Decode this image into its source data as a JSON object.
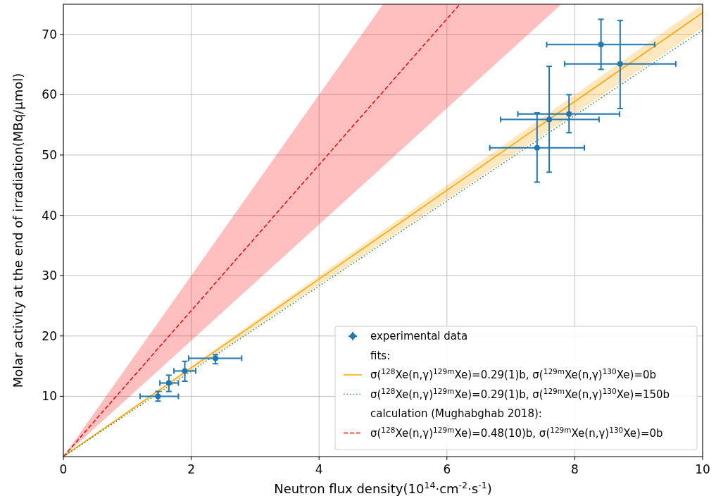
{
  "chart_data": {
    "type": "scatter",
    "xlabel": "Neutron flux density(10$^{14}$·cm$^{-2}$·s$^{-1}$)",
    "ylabel": "Molar activity at the end of irradiation(MBq/μmol)",
    "xlim": [
      0,
      10
    ],
    "xticks": [
      0,
      2,
      4,
      6,
      8,
      10
    ],
    "ylim": [
      0,
      75
    ],
    "yticks": [
      10,
      20,
      30,
      40,
      50,
      60,
      70
    ],
    "grid": true,
    "legend": "bottom right",
    "annotations": [
      "fits:",
      "calculation (Mughabghab 2018):"
    ],
    "series": [
      {
        "name": "experimental data",
        "color": "#1f77b4",
        "marker": "circle",
        "x": [
          1.48,
          1.65,
          1.9,
          2.38,
          7.41,
          7.6,
          7.91,
          8.41,
          8.71
        ],
        "values": [
          10.0,
          12.2,
          14.2,
          16.3,
          51.2,
          55.9,
          56.8,
          68.3,
          65.1
        ],
        "errors": [
          [
            9.2,
            10.8
          ],
          [
            10.8,
            13.5
          ],
          [
            12.5,
            15.8
          ],
          [
            15.4,
            16.9
          ],
          [
            45.5,
            57.0
          ],
          [
            47.15,
            64.7
          ],
          [
            53.7,
            60.0
          ],
          [
            64.2,
            72.5
          ],
          [
            57.7,
            72.3
          ]
        ],
        "xerrors": [
          [
            1.2,
            1.8
          ],
          [
            1.51,
            1.8
          ],
          [
            1.73,
            2.07
          ],
          [
            1.96,
            2.79
          ],
          [
            6.67,
            8.15
          ],
          [
            6.84,
            8.38
          ],
          [
            7.11,
            8.7
          ],
          [
            7.56,
            9.25
          ],
          [
            7.84,
            9.58
          ]
        ]
      },
      {
        "name": "σ($^{128}$Xe(n,γ)$^{129m}$Xe)=0.29(1)b, σ($^{129m}$Xe(n,γ)$^{130}$Xe)=0b",
        "type": "line",
        "line_style": "solid",
        "color": "#ffa500",
        "x": [
          0,
          10
        ],
        "values": [
          0,
          73.6
        ],
        "lower": [
          0,
          71.1
        ],
        "upper": [
          0,
          75
        ]
      },
      {
        "name": "σ($^{128}$Xe(n,γ)$^{129m}$Xe)=0.29(1)b, σ($^{129m}$Xe(n,γ)$^{130}$Xe)=150b",
        "type": "line",
        "line_style": "dotted",
        "color": "#228b22",
        "x": [
          0,
          10
        ],
        "values": [
          0,
          70.7
        ]
      },
      {
        "name": "σ($^{128}$Xe(n,γ)$^{129m}$Xe)=0.48(10)b, σ($^{129m}$Xe(n,γ)$^{130}$Xe)=0b",
        "type": "line",
        "line_style": "dashed",
        "color": "#ff0000",
        "x": [
          0,
          5,
          6.2,
          7.79
        ],
        "values": [
          0,
          60.5,
          75,
          null
        ],
        "lower": [
          0,
          48.1,
          59.7,
          75
        ],
        "upper": [
          0,
          75,
          75,
          75
        ]
      }
    ]
  }
}
